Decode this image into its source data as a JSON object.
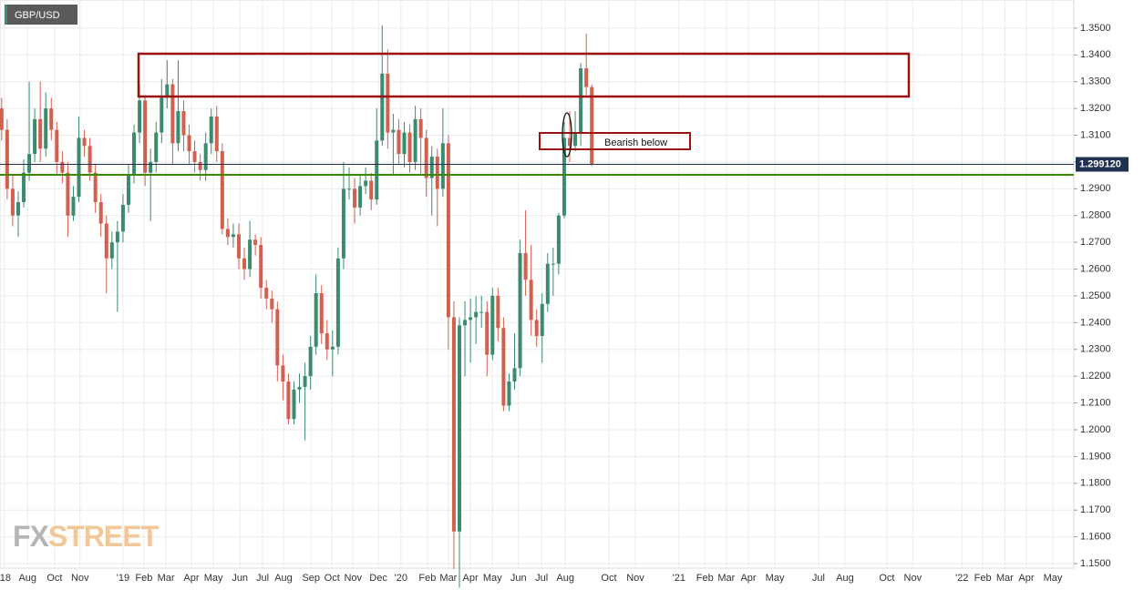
{
  "chart_data": {
    "type": "candlestick",
    "title": "GBP/USD",
    "watermark": [
      "FX",
      "STREET"
    ],
    "annotation": "Bearish below",
    "last_price": {
      "value": 1.29912,
      "label": "1.299120"
    },
    "support_level": 1.2952,
    "colors": {
      "up": "#3d8b6e",
      "down": "#d2604e",
      "grid": "#ebebeb",
      "last_price": "#1f3050",
      "support": "#3a8a00",
      "zone": "#9b1010"
    },
    "grid": true,
    "xlim": [
      -0.3,
      194.4
    ],
    "ylim": [
      1.1483,
      1.3605
    ],
    "xticks": [
      {
        "value": 0.5,
        "label": "'18"
      },
      {
        "value": 4.7,
        "label": "Aug"
      },
      {
        "value": 9.6,
        "label": "Oct"
      },
      {
        "value": 14.2,
        "label": "Nov"
      },
      {
        "value": 22.0,
        "label": "'19"
      },
      {
        "value": 25.8,
        "label": "Feb"
      },
      {
        "value": 29.8,
        "label": "Mar"
      },
      {
        "value": 34.4,
        "label": "Apr"
      },
      {
        "value": 38.4,
        "label": "May"
      },
      {
        "value": 43.2,
        "label": "Jun"
      },
      {
        "value": 47.3,
        "label": "Jul"
      },
      {
        "value": 51.1,
        "label": "Aug"
      },
      {
        "value": 56.1,
        "label": "Sep"
      },
      {
        "value": 59.9,
        "label": "Oct"
      },
      {
        "value": 63.7,
        "label": "Nov"
      },
      {
        "value": 68.3,
        "label": "Dec"
      },
      {
        "value": 72.4,
        "label": "'20"
      },
      {
        "value": 77.2,
        "label": "Feb"
      },
      {
        "value": 81.0,
        "label": "Mar"
      },
      {
        "value": 85.0,
        "label": "Apr"
      },
      {
        "value": 89.0,
        "label": "May"
      },
      {
        "value": 93.7,
        "label": "Jun"
      },
      {
        "value": 97.9,
        "label": "Jul"
      },
      {
        "value": 102.2,
        "label": "Aug"
      },
      {
        "value": 110.1,
        "label": "Oct"
      },
      {
        "value": 114.9,
        "label": "Nov"
      },
      {
        "value": 122.8,
        "label": "'21"
      },
      {
        "value": 127.5,
        "label": "Feb"
      },
      {
        "value": 131.4,
        "label": "Mar"
      },
      {
        "value": 135.4,
        "label": "Apr"
      },
      {
        "value": 140.2,
        "label": "May"
      },
      {
        "value": 148.1,
        "label": "Jul"
      },
      {
        "value": 152.9,
        "label": "Aug"
      },
      {
        "value": 160.5,
        "label": "Oct"
      },
      {
        "value": 165.2,
        "label": "Nov"
      },
      {
        "value": 174.1,
        "label": "'22"
      },
      {
        "value": 177.9,
        "label": "Feb"
      },
      {
        "value": 181.9,
        "label": "Mar"
      },
      {
        "value": 185.8,
        "label": "Apr"
      },
      {
        "value": 190.6,
        "label": "May"
      }
    ],
    "yticks": [
      {
        "value": 1.15,
        "label": "1.1500"
      },
      {
        "value": 1.16,
        "label": "1.1600"
      },
      {
        "value": 1.17,
        "label": "1.1700"
      },
      {
        "value": 1.18,
        "label": "1.1800"
      },
      {
        "value": 1.19,
        "label": "1.1900"
      },
      {
        "value": 1.2,
        "label": "1.2000"
      },
      {
        "value": 1.21,
        "label": "1.2100"
      },
      {
        "value": 1.22,
        "label": "1.2200"
      },
      {
        "value": 1.23,
        "label": "1.2300"
      },
      {
        "value": 1.24,
        "label": "1.2400"
      },
      {
        "value": 1.25,
        "label": "1.2500"
      },
      {
        "value": 1.26,
        "label": "1.2600"
      },
      {
        "value": 1.27,
        "label": "1.2700"
      },
      {
        "value": 1.28,
        "label": "1.2800"
      },
      {
        "value": 1.29,
        "label": "1.2900"
      },
      {
        "value": 1.3,
        "label": "1.3000"
      },
      {
        "value": 1.31,
        "label": "1.3100"
      },
      {
        "value": 1.32,
        "label": "1.3200"
      },
      {
        "value": 1.33,
        "label": "1.3300"
      },
      {
        "value": 1.34,
        "label": "1.3400"
      },
      {
        "value": 1.35,
        "label": "1.3500"
      }
    ],
    "x": [
      0,
      1,
      2,
      3,
      4,
      5,
      6,
      7,
      8,
      9,
      10,
      11,
      12,
      13,
      14,
      15,
      16,
      17,
      18,
      19,
      20,
      21,
      22,
      23,
      24,
      25,
      26,
      27,
      28,
      29,
      30,
      31,
      32,
      33,
      34,
      35,
      36,
      37,
      38,
      39,
      40,
      41,
      42,
      43,
      44,
      45,
      46,
      47,
      48,
      49,
      50,
      51,
      52,
      53,
      54,
      55,
      56,
      57,
      58,
      59,
      60,
      61,
      62,
      63,
      64,
      65,
      66,
      67,
      68,
      69,
      70,
      71,
      72,
      73,
      74,
      75,
      76,
      77,
      78,
      79,
      80,
      81,
      82,
      83,
      84,
      85,
      86,
      87,
      88,
      89,
      90,
      91,
      92,
      93,
      94,
      95,
      96,
      97,
      98,
      99,
      100,
      101,
      102,
      103,
      104,
      105,
      106,
      107
    ],
    "open": [
      1.32,
      1.312,
      1.29,
      1.28,
      1.285,
      1.296,
      1.303,
      1.316,
      1.305,
      1.32,
      1.312,
      1.3,
      1.296,
      1.28,
      1.287,
      1.309,
      1.306,
      1.296,
      1.285,
      1.277,
      1.264,
      1.27,
      1.274,
      1.284,
      1.295,
      1.311,
      1.323,
      1.296,
      1.3,
      1.311,
      1.324,
      1.329,
      1.307,
      1.319,
      1.31,
      1.304,
      1.3,
      1.297,
      1.307,
      1.317,
      1.304,
      1.275,
      1.272,
      1.273,
      1.264,
      1.26,
      1.271,
      1.269,
      1.253,
      1.249,
      1.245,
      1.224,
      1.218,
      1.204,
      1.215,
      1.216,
      1.22,
      1.231,
      1.251,
      1.236,
      1.23,
      1.231,
      1.264,
      1.29,
      1.29,
      1.283,
      1.291,
      1.293,
      1.286,
      1.308,
      1.333,
      1.311,
      1.312,
      1.303,
      1.311,
      1.3,
      1.316,
      1.309,
      1.294,
      1.302,
      1.29,
      1.307,
      1.242,
      1.162,
      1.239,
      1.241,
      1.242,
      1.244,
      1.244,
      1.228,
      1.25,
      1.238,
      1.209,
      1.218,
      1.223,
      1.266,
      1.256,
      1.241,
      1.235,
      1.247,
      1.262,
      1.262,
      1.28,
      1.309,
      1.306,
      1.311,
      1.335,
      1.328
    ],
    "high": [
      1.324,
      1.316,
      1.295,
      1.289,
      1.301,
      1.33,
      1.32,
      1.33,
      1.326,
      1.324,
      1.315,
      1.304,
      1.3,
      1.291,
      1.317,
      1.312,
      1.309,
      1.299,
      1.288,
      1.28,
      1.274,
      1.278,
      1.288,
      1.299,
      1.314,
      1.329,
      1.325,
      1.305,
      1.315,
      1.331,
      1.338,
      1.331,
      1.338,
      1.323,
      1.314,
      1.308,
      1.303,
      1.311,
      1.32,
      1.321,
      1.307,
      1.279,
      1.277,
      1.277,
      1.268,
      1.278,
      1.273,
      1.272,
      1.256,
      1.252,
      1.248,
      1.228,
      1.221,
      1.218,
      1.221,
      1.225,
      1.235,
      1.258,
      1.254,
      1.241,
      1.237,
      1.268,
      1.3,
      1.298,
      1.294,
      1.295,
      1.298,
      1.296,
      1.32,
      1.351,
      1.342,
      1.318,
      1.316,
      1.315,
      1.314,
      1.321,
      1.32,
      1.312,
      1.306,
      1.305,
      1.32,
      1.31,
      1.248,
      1.242,
      1.248,
      1.249,
      1.25,
      1.25,
      1.248,
      1.253,
      1.253,
      1.242,
      1.221,
      1.236,
      1.271,
      1.282,
      1.269,
      1.245,
      1.251,
      1.266,
      1.268,
      1.281,
      1.315,
      1.319,
      1.319,
      1.337,
      1.348,
      1.329
    ],
    "low": [
      1.308,
      1.286,
      1.276,
      1.272,
      1.283,
      1.293,
      1.3,
      1.3,
      1.302,
      1.308,
      1.295,
      1.292,
      1.272,
      1.278,
      1.285,
      1.302,
      1.293,
      1.281,
      1.272,
      1.251,
      1.26,
      1.244,
      1.27,
      1.281,
      1.292,
      1.307,
      1.291,
      1.278,
      1.296,
      1.307,
      1.32,
      1.299,
      1.304,
      1.304,
      1.299,
      1.296,
      1.293,
      1.293,
      1.303,
      1.3,
      1.273,
      1.269,
      1.268,
      1.26,
      1.256,
      1.257,
      1.265,
      1.249,
      1.245,
      1.24,
      1.218,
      1.211,
      1.202,
      1.202,
      1.21,
      1.196,
      1.215,
      1.228,
      1.232,
      1.226,
      1.22,
      1.228,
      1.26,
      1.286,
      1.277,
      1.28,
      1.288,
      1.282,
      1.284,
      1.306,
      1.305,
      1.295,
      1.299,
      1.298,
      1.296,
      1.297,
      1.295,
      1.287,
      1.28,
      1.276,
      1.287,
      1.23,
      1.148,
      1.141,
      1.22,
      1.225,
      1.232,
      1.238,
      1.22,
      1.226,
      1.233,
      1.207,
      1.207,
      1.215,
      1.22,
      1.25,
      1.235,
      1.231,
      1.225,
      1.244,
      1.25,
      1.258,
      1.279,
      1.3,
      1.304,
      1.306,
      1.325,
      1.2985
    ],
    "close": [
      1.312,
      1.29,
      1.28,
      1.285,
      1.296,
      1.303,
      1.316,
      1.305,
      1.32,
      1.312,
      1.3,
      1.296,
      1.28,
      1.287,
      1.309,
      1.306,
      1.296,
      1.285,
      1.277,
      1.264,
      1.27,
      1.274,
      1.284,
      1.295,
      1.311,
      1.323,
      1.296,
      1.3,
      1.311,
      1.324,
      1.329,
      1.307,
      1.319,
      1.31,
      1.304,
      1.3,
      1.297,
      1.307,
      1.317,
      1.304,
      1.275,
      1.272,
      1.273,
      1.264,
      1.26,
      1.271,
      1.269,
      1.253,
      1.249,
      1.245,
      1.224,
      1.218,
      1.204,
      1.215,
      1.216,
      1.22,
      1.231,
      1.251,
      1.236,
      1.23,
      1.231,
      1.264,
      1.29,
      1.29,
      1.283,
      1.291,
      1.293,
      1.286,
      1.308,
      1.333,
      1.311,
      1.312,
      1.303,
      1.311,
      1.3,
      1.316,
      1.309,
      1.294,
      1.302,
      1.29,
      1.307,
      1.242,
      1.162,
      1.239,
      1.241,
      1.242,
      1.244,
      1.244,
      1.228,
      1.25,
      1.238,
      1.209,
      1.218,
      1.223,
      1.266,
      1.256,
      1.241,
      1.235,
      1.247,
      1.262,
      1.262,
      1.28,
      1.309,
      1.306,
      1.311,
      1.335,
      1.328,
      1.2991
    ]
  }
}
